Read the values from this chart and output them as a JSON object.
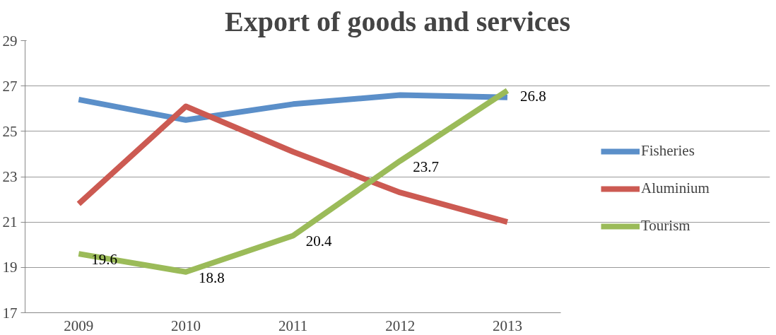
{
  "chart_data": {
    "type": "line",
    "title": "Export of goods and services",
    "categories": [
      "2009",
      "2010",
      "2011",
      "2012",
      "2013"
    ],
    "ylim": [
      17,
      29
    ],
    "yticks": [
      17,
      19,
      21,
      23,
      25,
      27,
      29
    ],
    "grid": "y",
    "legend": "right",
    "marker": "none",
    "line_style": "solid",
    "series": [
      {
        "name": "Fisheries",
        "color": "#5b8fc9",
        "values": [
          26.4,
          25.5,
          26.2,
          26.6,
          26.5
        ]
      },
      {
        "name": "Aluminium",
        "color": "#cc5a52",
        "values": [
          21.8,
          26.1,
          24.1,
          22.3,
          21.0
        ]
      },
      {
        "name": "Tourism",
        "color": "#9bbb59",
        "values": [
          19.6,
          18.8,
          20.4,
          23.7,
          26.8
        ],
        "value_labels": [
          "19.6",
          "18.8",
          "20.4",
          "23.7",
          "26.8"
        ]
      }
    ]
  }
}
